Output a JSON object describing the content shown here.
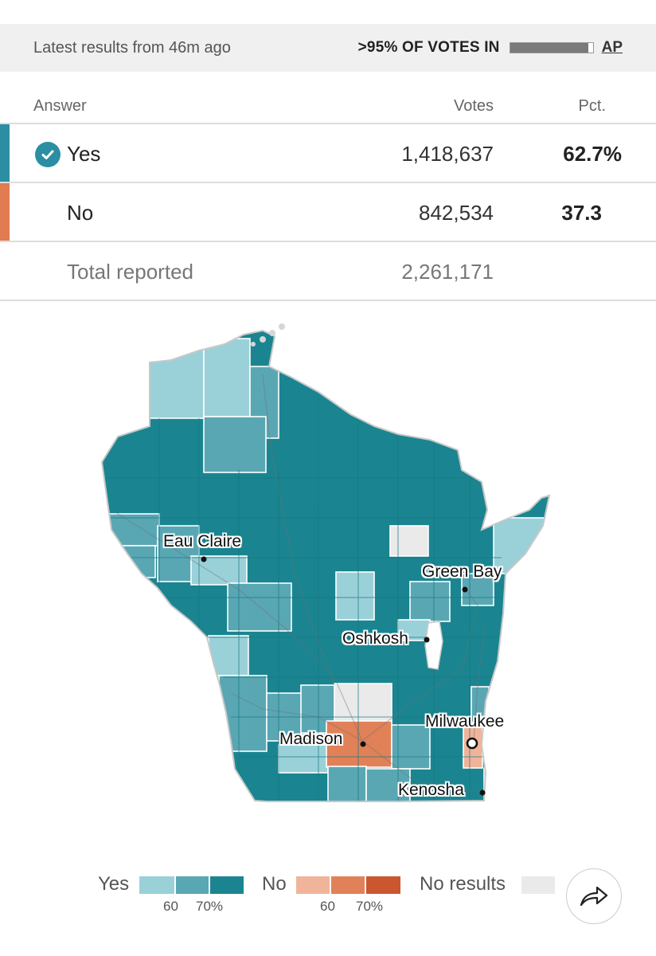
{
  "header": {
    "latest": "Latest results from 46m ago",
    "votes_in": ">95% OF VOTES IN",
    "votes_in_progress": 0.95,
    "source": "AP"
  },
  "table": {
    "columns": {
      "answer": "Answer",
      "votes": "Votes",
      "pct": "Pct."
    },
    "rows": [
      {
        "answer": "Yes",
        "votes": "1,418,637",
        "pct": "62.7%",
        "winner": true,
        "color": "#2b8ea3"
      },
      {
        "answer": "No",
        "votes": "842,534",
        "pct": "37.3",
        "winner": false,
        "color": "#e07b52"
      }
    ],
    "total": {
      "label": "Total reported",
      "votes": "2,261,171"
    }
  },
  "map": {
    "cities": {
      "eau_claire": "Eau Claire",
      "green_bay": "Green Bay",
      "oshkosh": "Oshkosh",
      "milwaukee": "Milwaukee",
      "madison": "Madison",
      "kenosha": "Kenosha"
    },
    "colors": {
      "yes_light": "#9ad1d9",
      "yes_mid": "#5aa7b4",
      "yes_dark": "#1a8590",
      "no_light": "#f0b49a",
      "no_mid": "#e18158",
      "no_dark": "#cb5730",
      "no_results": "#eaeaea"
    }
  },
  "legend": {
    "yes_label": "Yes",
    "no_label": "No",
    "no_results_label": "No results",
    "tick_60": "60",
    "tick_70": "70%"
  },
  "share_icon": "share-arrow-icon"
}
